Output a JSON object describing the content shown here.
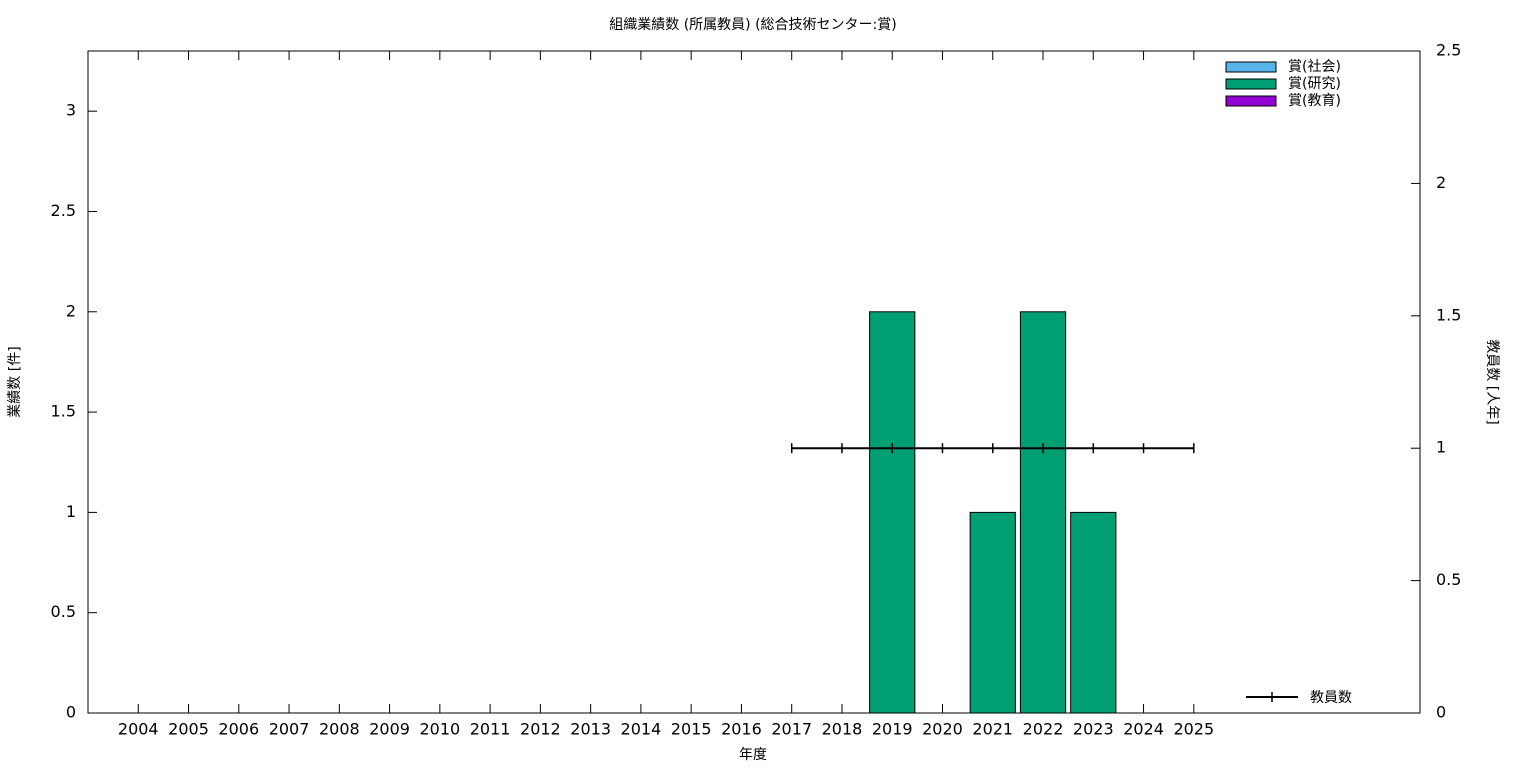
{
  "chart_data": {
    "type": "bar",
    "title": "組織業績数 (所属教員) (総合技術センター:賞)",
    "x_label": "年度",
    "y_label": "業績数 [件]",
    "y2_label": "教員数 [人年]",
    "categories": [
      "2004",
      "2005",
      "2006",
      "2007",
      "2008",
      "2009",
      "2010",
      "2011",
      "2012",
      "2013",
      "2014",
      "2015",
      "2016",
      "2017",
      "2018",
      "2019",
      "2020",
      "2021",
      "2022",
      "2023",
      "2024",
      "2025"
    ],
    "stacked": true,
    "series": [
      {
        "name": "賞(社会)",
        "color": "#56b4e9",
        "values": [
          0,
          0,
          0,
          0,
          0,
          0,
          0,
          0,
          0,
          0,
          0,
          0,
          0,
          0,
          0,
          0,
          0,
          0,
          0,
          0,
          0,
          0
        ]
      },
      {
        "name": "賞(研究)",
        "color": "#009e73",
        "values": [
          0,
          0,
          0,
          0,
          0,
          0,
          0,
          0,
          0,
          0,
          0,
          0,
          0,
          0,
          0,
          2,
          0,
          1,
          2,
          1,
          0,
          0
        ]
      },
      {
        "name": "賞(教育)",
        "color": "#9400d3",
        "values": [
          0,
          0,
          0,
          0,
          0,
          0,
          0,
          0,
          0,
          0,
          0,
          0,
          0,
          0,
          0,
          0,
          0,
          0,
          0,
          0,
          0,
          0
        ]
      },
      {
        "name": "教員数",
        "type": "line",
        "axis": "y2",
        "color": "#000000",
        "values": [
          null,
          null,
          null,
          null,
          null,
          null,
          null,
          null,
          null,
          null,
          null,
          null,
          null,
          1,
          1,
          1,
          1,
          1,
          1,
          1,
          1,
          1
        ]
      }
    ],
    "ylim": [
      0,
      3.3
    ],
    "yticks": [
      0,
      0.5,
      1,
      1.5,
      2,
      2.5,
      3
    ],
    "y2lim": [
      0,
      2.5
    ],
    "y2ticks": [
      0,
      0.5,
      1,
      1.5,
      2,
      2.5
    ],
    "grid": false
  }
}
